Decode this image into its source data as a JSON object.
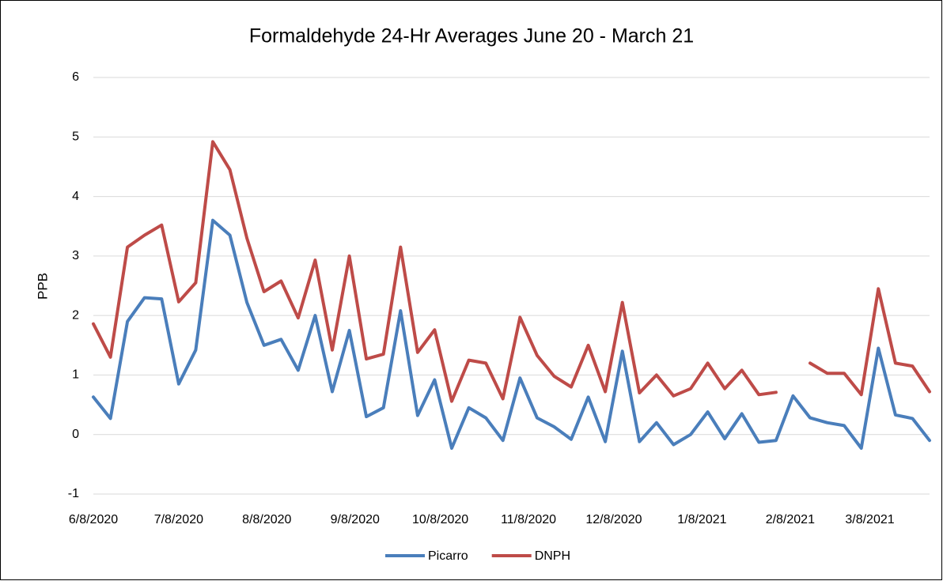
{
  "chart_data": {
    "type": "line",
    "title": "Formaldehyde 24-Hr Averages June 20 - March 21",
    "y_label": "PPB",
    "x": [
      "2020-06-08",
      "2020-06-14",
      "2020-06-20",
      "2020-06-26",
      "2020-07-02",
      "2020-07-08",
      "2020-07-14",
      "2020-07-20",
      "2020-07-26",
      "2020-08-01",
      "2020-08-07",
      "2020-08-13",
      "2020-08-19",
      "2020-08-25",
      "2020-08-31",
      "2020-09-06",
      "2020-09-12",
      "2020-09-18",
      "2020-09-24",
      "2020-09-30",
      "2020-10-06",
      "2020-10-12",
      "2020-10-18",
      "2020-10-24",
      "2020-10-30",
      "2020-11-05",
      "2020-11-11",
      "2020-11-17",
      "2020-11-23",
      "2020-11-29",
      "2020-12-05",
      "2020-12-11",
      "2020-12-17",
      "2020-12-23",
      "2020-12-29",
      "2021-01-04",
      "2021-01-10",
      "2021-01-16",
      "2021-01-22",
      "2021-01-28",
      "2021-02-03",
      "2021-02-09",
      "2021-02-15",
      "2021-02-21",
      "2021-02-27",
      "2021-03-05",
      "2021-03-11",
      "2021-03-17",
      "2021-03-23",
      "2021-03-29"
    ],
    "series": [
      {
        "name": "Picarro",
        "color": "#4a7ebb",
        "values": [
          0.63,
          0.27,
          1.9,
          2.3,
          2.28,
          0.85,
          1.42,
          3.6,
          3.35,
          2.22,
          1.5,
          1.6,
          1.08,
          2.0,
          0.72,
          1.75,
          0.3,
          0.45,
          2.08,
          0.32,
          0.92,
          -0.23,
          0.45,
          0.28,
          -0.1,
          0.95,
          0.28,
          0.13,
          -0.08,
          0.63,
          -0.12,
          1.4,
          -0.12,
          0.2,
          -0.17,
          0.0,
          0.38,
          -0.07,
          0.35,
          -0.13,
          -0.1,
          0.65,
          0.28,
          0.2,
          0.15,
          -0.23,
          1.45,
          0.33,
          0.27,
          -0.1
        ]
      },
      {
        "name": "DNPH",
        "color": "#be4b48",
        "values": [
          1.86,
          1.3,
          3.15,
          3.35,
          3.52,
          2.23,
          2.55,
          4.92,
          4.45,
          3.3,
          2.4,
          2.58,
          1.96,
          2.93,
          1.42,
          3.0,
          1.27,
          1.35,
          3.15,
          1.38,
          1.76,
          0.56,
          1.25,
          1.2,
          0.6,
          1.97,
          1.33,
          0.98,
          0.8,
          1.5,
          0.72,
          2.22,
          0.7,
          1.0,
          0.65,
          0.77,
          1.2,
          0.77,
          1.08,
          0.67,
          0.71,
          null,
          1.2,
          1.03,
          1.03,
          0.67,
          2.45,
          1.2,
          1.15,
          0.72
        ]
      }
    ],
    "xlim": [
      "2020-06-08",
      "2021-03-29"
    ],
    "xticks": [
      {
        "value": "2020-06-08",
        "label": "6/8/2020"
      },
      {
        "value": "2020-07-08",
        "label": "7/8/2020"
      },
      {
        "value": "2020-08-08",
        "label": "8/8/2020"
      },
      {
        "value": "2020-09-08",
        "label": "9/8/2020"
      },
      {
        "value": "2020-10-08",
        "label": "10/8/2020"
      },
      {
        "value": "2020-11-08",
        "label": "11/8/2020"
      },
      {
        "value": "2020-12-08",
        "label": "12/8/2020"
      },
      {
        "value": "2021-01-08",
        "label": "1/8/2021"
      },
      {
        "value": "2021-02-08",
        "label": "2/8/2021"
      },
      {
        "value": "2021-03-08",
        "label": "3/8/2021"
      }
    ],
    "ylim": [
      -1,
      6
    ],
    "yticks": [
      -1,
      0,
      1,
      2,
      3,
      4,
      5,
      6
    ],
    "grid": true,
    "legend": "bottom"
  }
}
